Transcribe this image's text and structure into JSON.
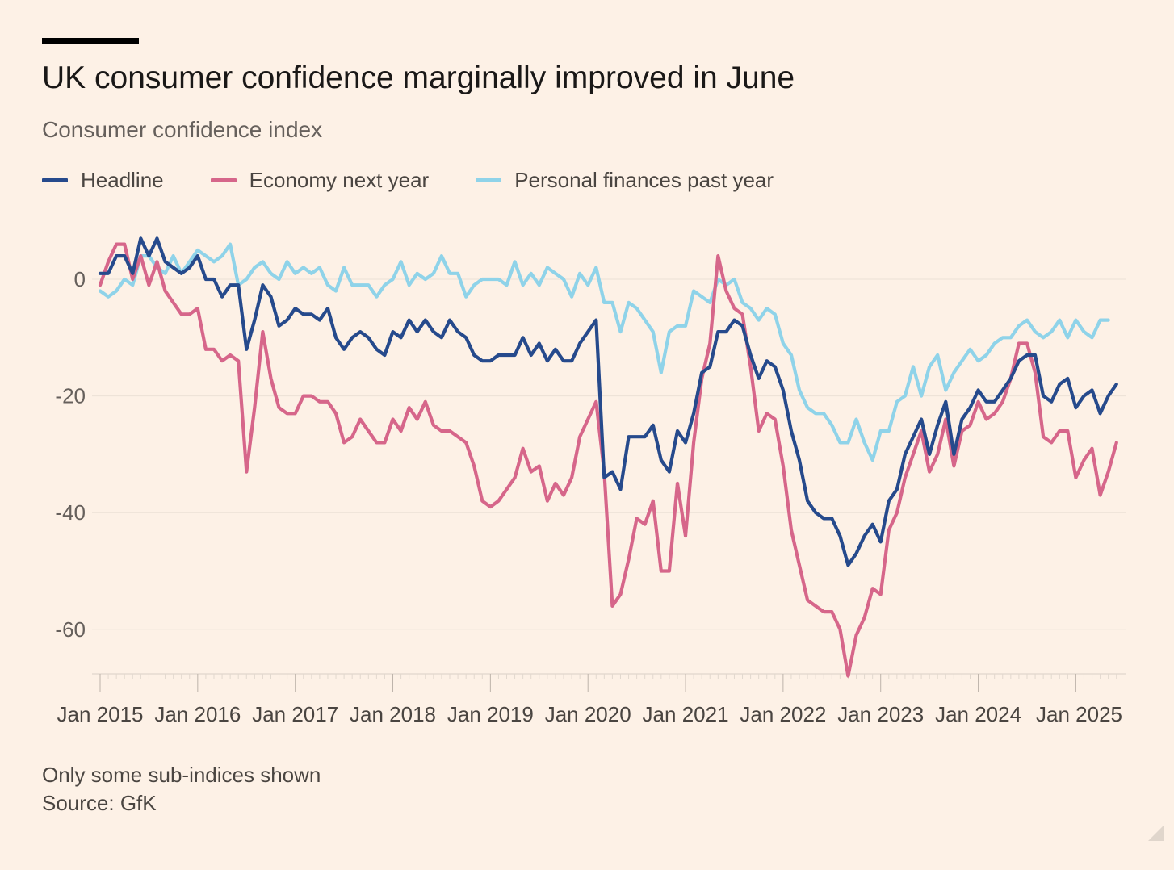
{
  "header": {
    "title": "UK consumer confidence marginally improved in June",
    "subtitle": "Consumer confidence index"
  },
  "legend": [
    {
      "label": "Headline",
      "color": "#264a8c"
    },
    {
      "label": "Economy next year",
      "color": "#d6668a"
    },
    {
      "label": "Personal finances past year",
      "color": "#8fd3e9"
    }
  ],
  "footer": {
    "note": "Only some sub-indices shown",
    "source": "Source: GfK"
  },
  "chart_data": {
    "type": "line",
    "start": "2015-01",
    "frequency": "monthly",
    "xlabel": "",
    "ylabel": "",
    "ylim": [
      -68,
      8
    ],
    "yticks": [
      0,
      -20,
      -40,
      -60
    ],
    "ytick_labels": [
      "0",
      "-20",
      "-40",
      "-60"
    ],
    "xtick_labels": [
      "Jan 2015",
      "Jan 2016",
      "Jan 2017",
      "Jan 2018",
      "Jan 2019",
      "Jan 2020",
      "Jan 2021",
      "Jan 2022",
      "Jan 2023",
      "Jan 2024",
      "Jan 2025"
    ],
    "grid": "horizontal",
    "series": [
      {
        "name": "Headline",
        "color": "#264a8c",
        "values": [
          1,
          1,
          4,
          4,
          1,
          7,
          4,
          7,
          3,
          2,
          1,
          2,
          4,
          0,
          0,
          -3,
          -1,
          -1,
          -12,
          -7,
          -1,
          -3,
          -8,
          -7,
          -5,
          -6,
          -6,
          -7,
          -5,
          -10,
          -12,
          -10,
          -9,
          -10,
          -12,
          -13,
          -9,
          -10,
          -7,
          -9,
          -7,
          -9,
          -10,
          -7,
          -9,
          -10,
          -13,
          -14,
          -14,
          -13,
          -13,
          -13,
          -10,
          -13,
          -11,
          -14,
          -12,
          -14,
          -14,
          -11,
          -9,
          -7,
          -34,
          -33,
          -36,
          -27,
          -27,
          -27,
          -25,
          -31,
          -33,
          -26,
          -28,
          -23,
          -16,
          -15,
          -9,
          -9,
          -7,
          -8,
          -13,
          -17,
          -14,
          -15,
          -19,
          -26,
          -31,
          -38,
          -40,
          -41,
          -41,
          -44,
          -49,
          -47,
          -44,
          -42,
          -45,
          -38,
          -36,
          -30,
          -27,
          -24,
          -30,
          -25,
          -21,
          -30,
          -24,
          -22,
          -19,
          -21,
          -21,
          -19,
          -17,
          -14,
          -13,
          -13,
          -20,
          -21,
          -18,
          -17,
          -22,
          -20,
          -19,
          -23,
          -20,
          -18
        ]
      },
      {
        "name": "Economy next year",
        "color": "#d6668a",
        "values": [
          -1,
          3,
          6,
          6,
          0,
          4,
          -1,
          3,
          -2,
          -4,
          -6,
          -6,
          -5,
          -12,
          -12,
          -14,
          -13,
          -14,
          -33,
          -22,
          -9,
          -17,
          -22,
          -23,
          -23,
          -20,
          -20,
          -21,
          -21,
          -23,
          -28,
          -27,
          -24,
          -26,
          -28,
          -28,
          -24,
          -26,
          -22,
          -24,
          -21,
          -25,
          -26,
          -26,
          -27,
          -28,
          -32,
          -38,
          -39,
          -38,
          -36,
          -34,
          -29,
          -33,
          -32,
          -38,
          -35,
          -37,
          -34,
          -27,
          -24,
          -21,
          -33,
          -56,
          -54,
          -48,
          -41,
          -42,
          -38,
          -50,
          -50,
          -35,
          -44,
          -28,
          -17,
          -11,
          4,
          -2,
          -5,
          -6,
          -15,
          -26,
          -23,
          -24,
          -32,
          -43,
          -49,
          -55,
          -56,
          -57,
          -57,
          -60,
          -68,
          -61,
          -58,
          -53,
          -54,
          -43,
          -40,
          -34,
          -30,
          -26,
          -33,
          -30,
          -24,
          -32,
          -26,
          -25,
          -21,
          -24,
          -23,
          -21,
          -17,
          -11,
          -11,
          -16,
          -27,
          -28,
          -26,
          -26,
          -34,
          -31,
          -29,
          -37,
          -33,
          -28
        ]
      },
      {
        "name": "Personal finances past year",
        "color": "#8fd3e9",
        "values": [
          -2,
          -3,
          -2,
          0,
          -1,
          4,
          4,
          2,
          1,
          4,
          1,
          3,
          5,
          4,
          3,
          4,
          6,
          -1,
          0,
          2,
          3,
          1,
          0,
          3,
          1,
          2,
          1,
          2,
          -1,
          -2,
          2,
          -1,
          -1,
          -1,
          -3,
          -1,
          0,
          3,
          -1,
          1,
          0,
          1,
          4,
          1,
          1,
          -3,
          -1,
          0,
          0,
          0,
          -1,
          3,
          -1,
          1,
          -1,
          2,
          1,
          0,
          -3,
          1,
          -1,
          2,
          -4,
          -4,
          -9,
          -4,
          -5,
          -7,
          -9,
          -16,
          -9,
          -8,
          -8,
          -2,
          -3,
          -4,
          0,
          -1,
          0,
          -4,
          -5,
          -7,
          -5,
          -6,
          -11,
          -13,
          -19,
          -22,
          -23,
          -23,
          -25,
          -28,
          -28,
          -24,
          -28,
          -31,
          -26,
          -26,
          -21,
          -20,
          -15,
          -20,
          -15,
          -13,
          -19,
          -16,
          -14,
          -12,
          -14,
          -13,
          -11,
          -10,
          -10,
          -8,
          -7,
          -9,
          -10,
          -9,
          -7,
          -10,
          -7,
          -9,
          -10,
          -7,
          -7
        ]
      }
    ]
  }
}
